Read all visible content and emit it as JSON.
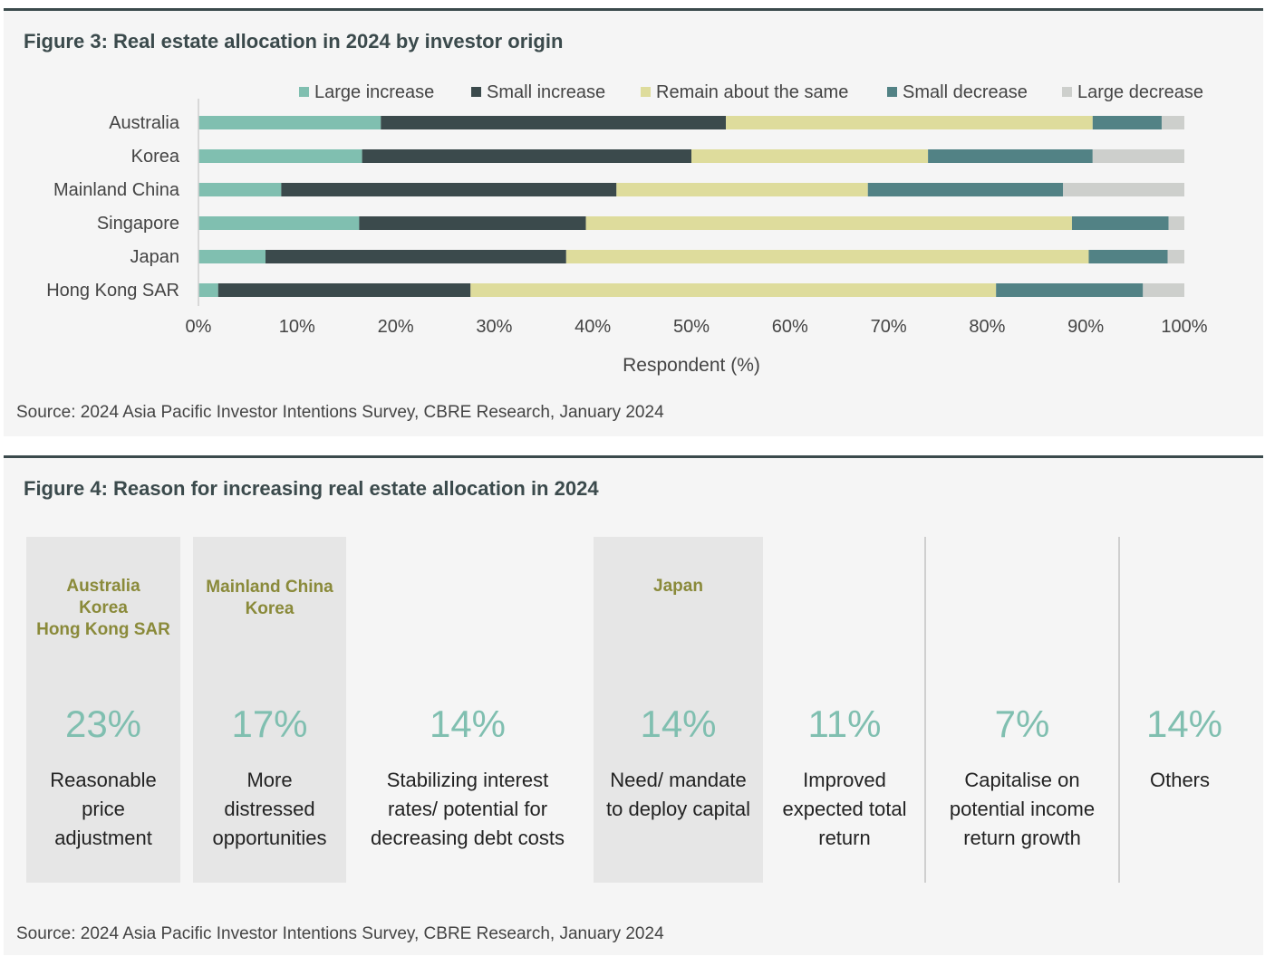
{
  "figure3": {
    "title": "Figure 3:  Real estate allocation in 2024 by investor origin",
    "source": "Source: 2024 Asia Pacific Investor Intentions Survey, CBRE Research, January 2024"
  },
  "chart_data": {
    "type": "bar",
    "orientation": "horizontal",
    "stacked": true,
    "title": "Figure 3:  Real estate allocation in 2024 by investor origin",
    "xlabel": "Respondent (%)",
    "ylabel": "",
    "xlim": [
      0,
      100
    ],
    "x_ticks": [
      "0%",
      "10%",
      "20%",
      "30%",
      "40%",
      "50%",
      "60%",
      "70%",
      "80%",
      "90%",
      "100%"
    ],
    "categories": [
      "Australia",
      "Korea",
      "Mainland China",
      "Singapore",
      "Japan",
      "Hong Kong SAR"
    ],
    "series": [
      {
        "name": "Large increase",
        "color": "#80bfb0",
        "values": [
          18.5,
          16.6,
          8.4,
          16.3,
          6.8,
          2.0
        ]
      },
      {
        "name": "Small increase",
        "color": "#3b4a4c",
        "values": [
          35.0,
          33.4,
          34.0,
          23.0,
          30.5,
          25.6
        ]
      },
      {
        "name": "Remain about the same",
        "color": "#dedc9c",
        "values": [
          37.2,
          24.0,
          25.5,
          49.3,
          53.0,
          53.3
        ]
      },
      {
        "name": "Small decrease",
        "color": "#528285",
        "values": [
          7.0,
          16.7,
          19.8,
          9.8,
          8.0,
          14.9
        ]
      },
      {
        "name": "Large decrease",
        "color": "#cdcfcc",
        "values": [
          2.3,
          9.3,
          12.3,
          1.6,
          1.7,
          4.2
        ]
      }
    ],
    "legend_position": "top-right",
    "grid": false
  },
  "figure4": {
    "title": "Figure 4:  Reason for increasing real estate allocation in 2024",
    "source": "Source: 2024 Asia Pacific Investor Intentions Survey, CBRE Research, January 2024",
    "reasons": [
      {
        "pct": "23%",
        "label": [
          "Reasonable",
          "price",
          "adjustment"
        ],
        "countries": [
          "Australia",
          "Korea",
          "Hong Kong SAR"
        ]
      },
      {
        "pct": "17%",
        "label": [
          "More",
          "distressed",
          "opportunities"
        ],
        "countries": [
          "Mainland China",
          "Korea"
        ]
      },
      {
        "pct": "14%",
        "label": [
          "Stabilizing interest",
          "rates/ potential for",
          "decreasing debt costs"
        ],
        "countries": []
      },
      {
        "pct": "14%",
        "label": [
          "Need/ mandate",
          "to deploy capital"
        ],
        "countries": [
          "Japan"
        ]
      },
      {
        "pct": "11%",
        "label": [
          "Improved",
          "expected total",
          "return"
        ],
        "countries": []
      },
      {
        "pct": "7%",
        "label": [
          "Capitalise on",
          "potential income",
          "return growth"
        ],
        "countries": []
      },
      {
        "pct": "14%",
        "label": [
          "Others"
        ],
        "countries": []
      }
    ]
  }
}
